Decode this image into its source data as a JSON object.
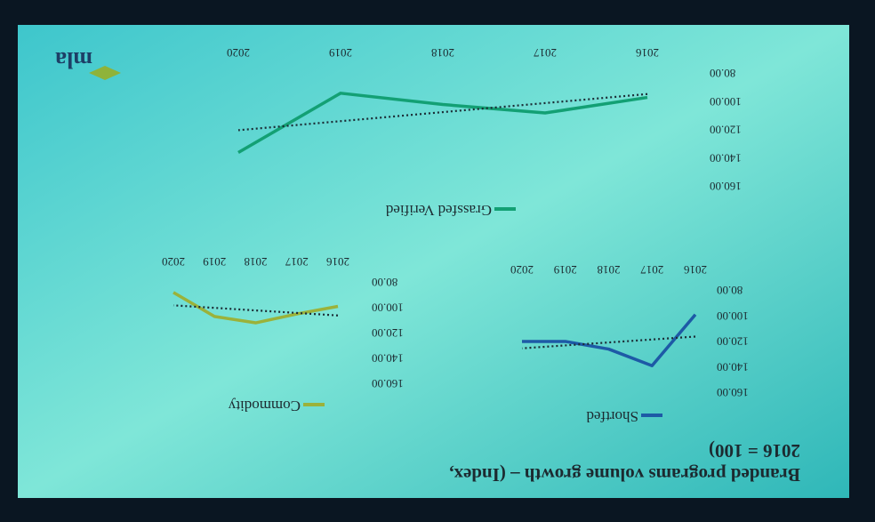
{
  "header": {
    "title_lines": [
      "Branded programs volume growth – (Index,",
      "2016 = 100)"
    ],
    "logo": "mla"
  },
  "chart_data": [
    {
      "type": "line",
      "categories": [
        "2016",
        "2017",
        "2018",
        "2019",
        "2020"
      ],
      "series": [
        {
          "name": "Shortfed",
          "color": "#1d5aa6",
          "values": [
            100,
            140,
            127,
            121,
            121
          ]
        }
      ],
      "ylim": [
        80,
        160
      ],
      "yticks": [
        {
          "value": 80,
          "label": "80.00"
        },
        {
          "value": 100,
          "label": "100.00"
        },
        {
          "value": 120,
          "label": "120.00"
        },
        {
          "value": 140,
          "label": "140.00"
        },
        {
          "value": 160,
          "label": "160.00"
        }
      ],
      "trendline": true,
      "grid": false
    },
    {
      "type": "line",
      "categories": [
        "2016",
        "2017",
        "2018",
        "2019",
        "2020"
      ],
      "series": [
        {
          "name": "Commodity",
          "color": "#9bb23a",
          "values": [
            100,
            106,
            113,
            108,
            89
          ]
        }
      ],
      "ylim": [
        80,
        160
      ],
      "yticks": [
        {
          "value": 80,
          "label": "80.00"
        },
        {
          "value": 100,
          "label": "100.00"
        },
        {
          "value": 120,
          "label": "120.00"
        },
        {
          "value": 140,
          "label": "140.00"
        },
        {
          "value": 160,
          "label": "160.00"
        }
      ],
      "trendline": true,
      "grid": false
    },
    {
      "type": "line",
      "categories": [
        "2016",
        "2017",
        "2018",
        "2019",
        "2020"
      ],
      "series": [
        {
          "name": "Grassfed Verified",
          "color": "#13a074",
          "values": [
            98,
            109,
            103,
            95,
            137
          ]
        }
      ],
      "ylim": [
        80,
        160
      ],
      "yticks": [
        {
          "value": 80,
          "label": "80.00"
        },
        {
          "value": 100,
          "label": "100.00"
        },
        {
          "value": 120,
          "label": "120.00"
        },
        {
          "value": 140,
          "label": "140.00"
        },
        {
          "value": 160,
          "label": "160.00"
        }
      ],
      "trendline": true,
      "grid": false
    }
  ]
}
